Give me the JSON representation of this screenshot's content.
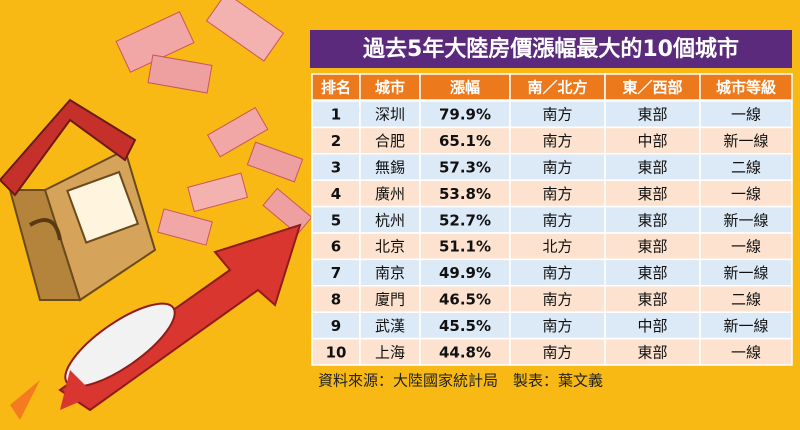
{
  "title": "過去5年大陸房價漲幅最大的10個城市",
  "table": {
    "headers": [
      "排名",
      "城市",
      "漲幅",
      "南／北方",
      "東／西部",
      "城市等級"
    ],
    "rows": [
      [
        "1",
        "深圳",
        "79.9%",
        "南方",
        "東部",
        "一線"
      ],
      [
        "2",
        "合肥",
        "65.1%",
        "南方",
        "中部",
        "新一線"
      ],
      [
        "3",
        "無錫",
        "57.3%",
        "南方",
        "東部",
        "二線"
      ],
      [
        "4",
        "廣州",
        "53.8%",
        "南方",
        "東部",
        "一線"
      ],
      [
        "5",
        "杭州",
        "52.7%",
        "南方",
        "東部",
        "新一線"
      ],
      [
        "6",
        "北京",
        "51.1%",
        "北方",
        "東部",
        "一線"
      ],
      [
        "7",
        "南京",
        "49.9%",
        "南方",
        "東部",
        "新一線"
      ],
      [
        "8",
        "廈門",
        "46.5%",
        "南方",
        "東部",
        "二線"
      ],
      [
        "9",
        "武漢",
        "45.5%",
        "南方",
        "中部",
        "新一線"
      ],
      [
        "10",
        "上海",
        "44.8%",
        "南方",
        "東部",
        "一線"
      ]
    ]
  },
  "source": "資料來源：大陸國家統計局　製表：葉文義"
}
